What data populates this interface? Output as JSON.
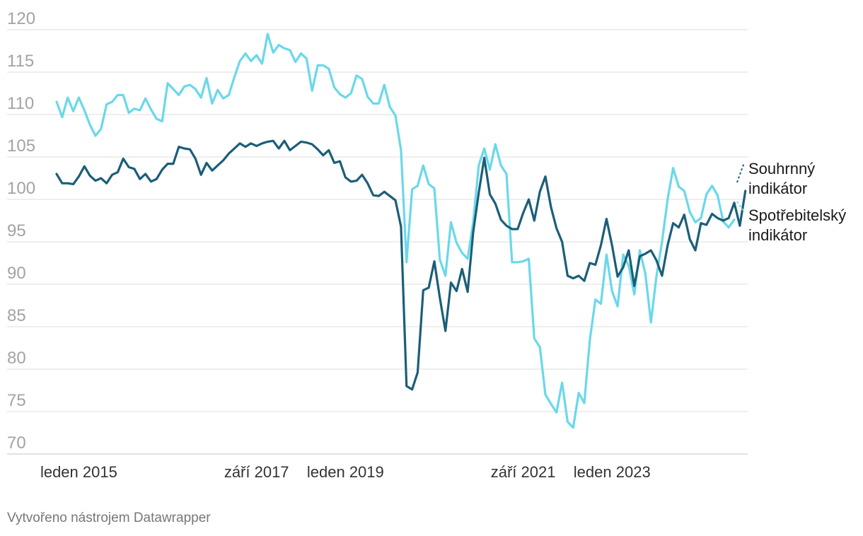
{
  "chart_data": {
    "type": "line",
    "x_start": "2014-09",
    "x_frequency": "monthly",
    "x_ticks": [
      "leden 2015",
      "září 2017",
      "leden 2019",
      "září 2021",
      "leden 2023"
    ],
    "x_tick_dates": [
      "2015-01",
      "2017-09",
      "2019-01",
      "2021-09",
      "2023-01"
    ],
    "ylim": [
      70,
      120
    ],
    "yticks": [
      120,
      115,
      110,
      105,
      100,
      95,
      90,
      85,
      80,
      75,
      70
    ],
    "grid": true,
    "legend": "right",
    "series": [
      {
        "name": "Spotřebitelský indikátor",
        "color": "#6ad8ea",
        "values": [
          111.5,
          109.7,
          112.0,
          110.4,
          112.0,
          110.5,
          108.8,
          107.5,
          108.3,
          111.2,
          111.5,
          112.3,
          112.3,
          110.2,
          110.7,
          110.5,
          111.9,
          110.6,
          109.5,
          109.2,
          113.7,
          113.0,
          112.3,
          113.3,
          113.5,
          113.0,
          112.0,
          114.3,
          111.3,
          112.9,
          111.9,
          112.3,
          114.4,
          116.3,
          117.2,
          116.3,
          117.0,
          116.0,
          119.5,
          117.3,
          118.2,
          117.8,
          117.6,
          116.2,
          117.2,
          116.6,
          112.8,
          115.8,
          115.8,
          115.4,
          113.2,
          112.4,
          112.0,
          112.5,
          114.6,
          114.2,
          112.1,
          111.3,
          111.3,
          113.5,
          110.9,
          109.9,
          105.8,
          92.6,
          101.2,
          101.6,
          104.0,
          101.8,
          101.3,
          92.9,
          91.0,
          97.3,
          94.9,
          93.7,
          93.0,
          97.3,
          104.0,
          106.0,
          103.5,
          106.5,
          104.0,
          103.0,
          92.6,
          92.6,
          92.7,
          93.0,
          83.6,
          82.6,
          77.0,
          75.9,
          74.9,
          78.4,
          73.8,
          73.1,
          77.2,
          76.0,
          83.4,
          88.2,
          87.7,
          93.5,
          89.2,
          87.4,
          93.5,
          92.2,
          88.8,
          94.0,
          91.2,
          85.5,
          91.0,
          95.0,
          100.0,
          103.7,
          101.5,
          101.0,
          98.5,
          97.3,
          97.8,
          100.6,
          101.6,
          100.5,
          97.4,
          96.7,
          97.6
        ]
      },
      {
        "name": "Souhrnný indikátor",
        "color": "#1b5e78",
        "values": [
          103.0,
          101.9,
          101.9,
          101.8,
          102.7,
          103.9,
          102.8,
          102.2,
          102.5,
          101.9,
          102.9,
          103.2,
          104.8,
          103.8,
          103.6,
          102.4,
          103.0,
          102.1,
          102.4,
          103.5,
          104.2,
          104.2,
          106.2,
          106.0,
          105.9,
          104.8,
          102.9,
          104.3,
          103.4,
          104.0,
          104.6,
          105.4,
          106.0,
          106.6,
          106.2,
          106.6,
          106.3,
          106.6,
          106.8,
          106.9,
          106.0,
          106.9,
          105.8,
          106.3,
          106.8,
          106.7,
          106.5,
          105.9,
          105.2,
          105.8,
          104.3,
          104.5,
          102.6,
          102.1,
          102.2,
          102.9,
          101.9,
          100.5,
          100.4,
          100.9,
          100.4,
          99.9,
          96.8,
          78.0,
          77.6,
          79.6,
          89.3,
          89.6,
          92.7,
          88.4,
          84.5,
          90.2,
          89.2,
          91.8,
          89.1,
          96.1,
          100.8,
          104.9,
          100.6,
          99.5,
          97.6,
          96.9,
          96.5,
          96.5,
          98.4,
          100.0,
          97.5,
          100.9,
          102.7,
          99.1,
          96.6,
          95.0,
          91.0,
          90.7,
          91.0,
          90.4,
          92.5,
          92.3,
          94.6,
          97.7,
          94.6,
          90.9,
          92.0,
          94.0,
          89.8,
          93.3,
          93.6,
          94.0,
          92.8,
          91.0,
          94.6,
          97.2,
          96.7,
          98.2,
          95.3,
          94.0,
          97.2,
          97.0,
          98.3,
          97.8,
          97.5,
          97.8,
          99.6,
          96.9,
          101.0
        ]
      }
    ],
    "legend_lines": {
      "souhrnny": [
        "Souhrnný",
        "indikátor"
      ],
      "spotrebitelsky": [
        "Spotřebitelský",
        "indikátor"
      ]
    }
  },
  "footer": {
    "credit": "Vytvořeno nástrojem Datawrapper"
  }
}
